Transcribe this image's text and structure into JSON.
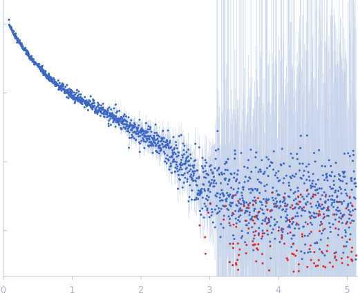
{
  "chart_data": {
    "type": "scatter",
    "title": "",
    "xlabel": "",
    "ylabel": "",
    "xlim": [
      0,
      5.15
    ],
    "ylim_log10": [
      -4.0,
      0.35
    ],
    "xticks": [
      {
        "value": 0,
        "label": "0"
      },
      {
        "value": 1,
        "label": "1"
      },
      {
        "value": 2,
        "label": "2"
      },
      {
        "value": 3,
        "label": "3"
      },
      {
        "value": 4,
        "label": "4"
      },
      {
        "value": 5,
        "label": "5"
      }
    ],
    "yticks_log10": [
      0,
      -1,
      -2,
      -3
    ],
    "series": [
      {
        "color": "#3a66c4",
        "marker": "dot",
        "curve_x": [
          0.08,
          0.2,
          0.4,
          0.6,
          0.8,
          1.0,
          1.2,
          1.4,
          1.6,
          1.8,
          2.0,
          2.2,
          2.4,
          2.6,
          2.8,
          3.0,
          3.2,
          3.4,
          3.6,
          3.8,
          4.0,
          4.5,
          5.15
        ],
        "curve_log10_y": [
          0.0,
          -0.22,
          -0.5,
          -0.72,
          -0.9,
          -1.03,
          -1.14,
          -1.24,
          -1.35,
          -1.47,
          -1.58,
          -1.7,
          -1.85,
          -2.02,
          -2.2,
          -2.37,
          -2.47,
          -2.52,
          -2.55,
          -2.57,
          -2.58,
          -2.6,
          -2.62
        ]
      },
      {
        "color": "#e02828",
        "marker": "dot",
        "x_range": [
          2.85,
          5.15
        ],
        "log10_y_range": [
          -3.6,
          -2.4
        ]
      }
    ],
    "error_band_color": "#c5d3ea",
    "grid": false,
    "legend": "none"
  }
}
